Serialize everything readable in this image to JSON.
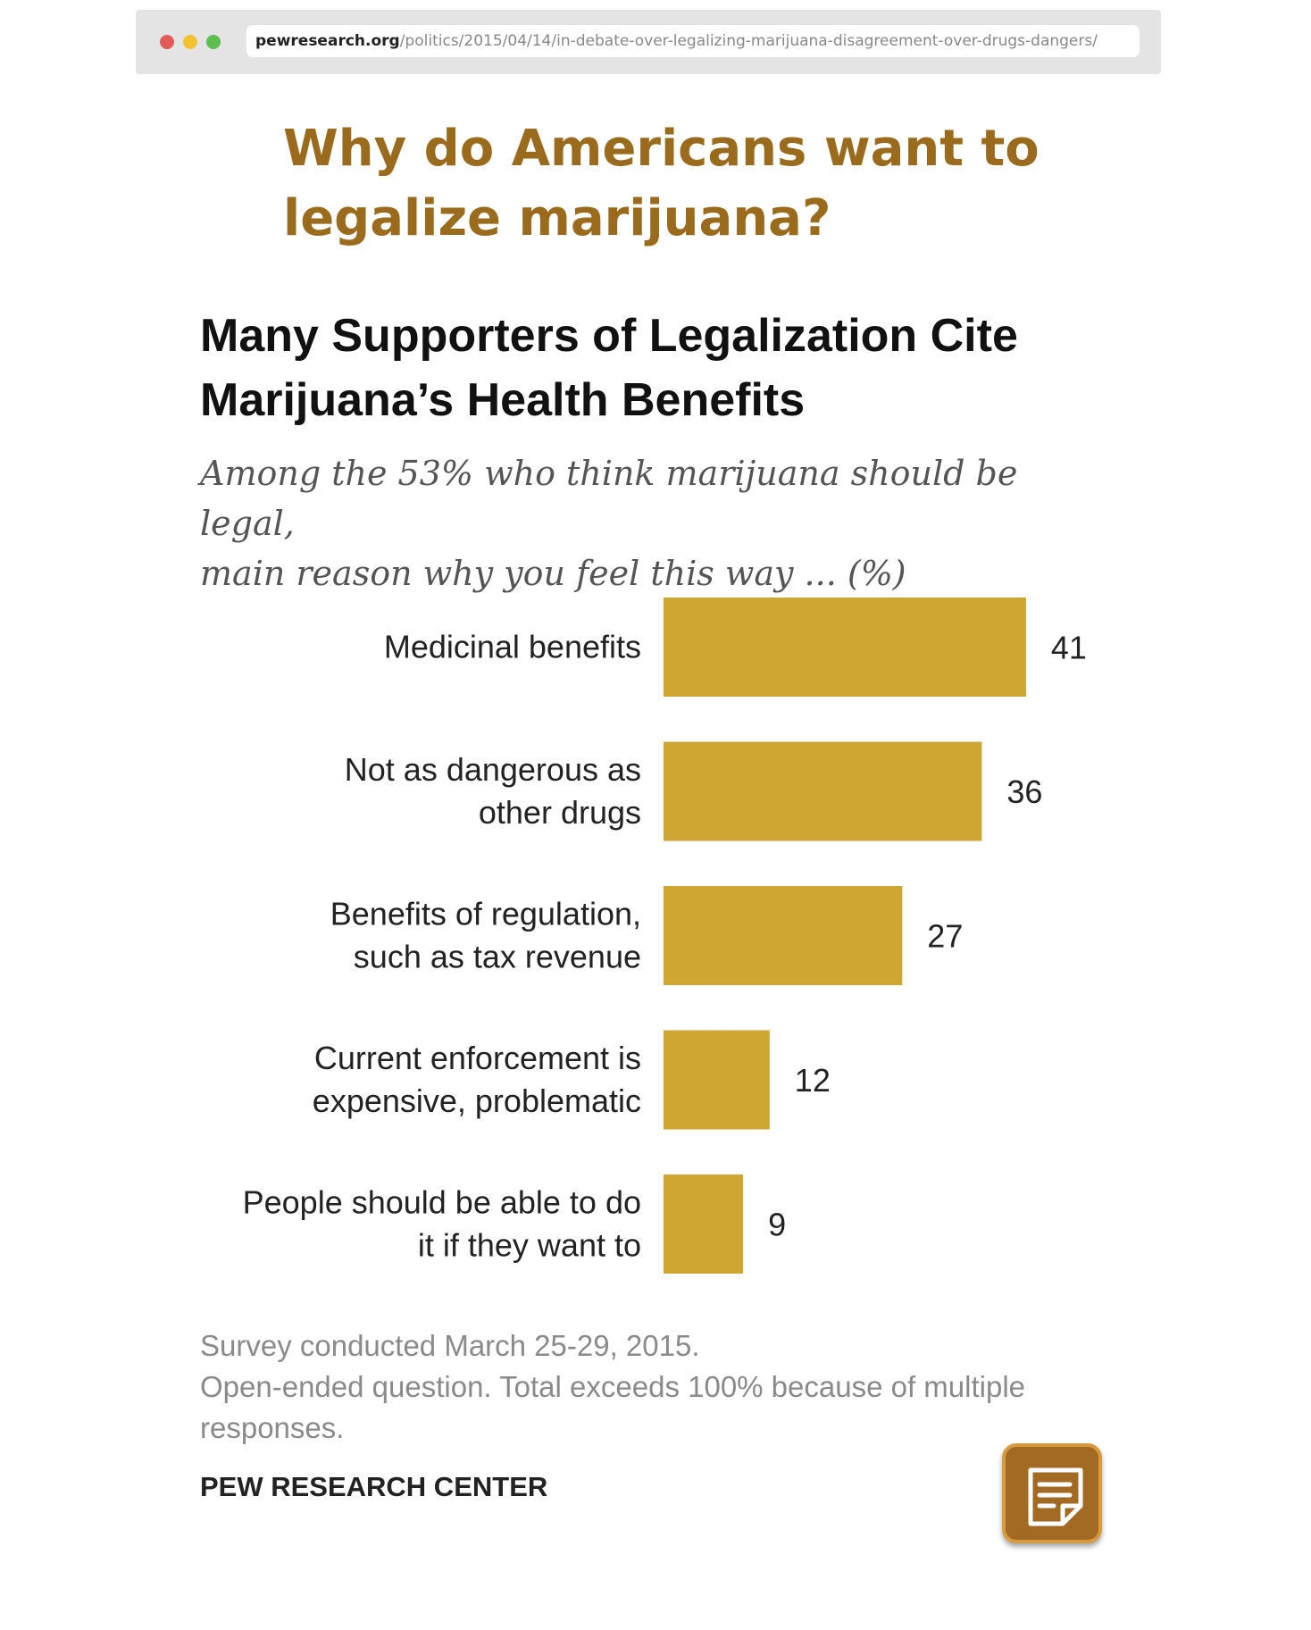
{
  "browser": {
    "url_host": "pewresearch.org",
    "url_path": "/politics/2015/04/14/in-debate-over-legalizing-marijuana-disagreement-over-drugs-dangers/"
  },
  "headline": {
    "line1": "Why do Americans want to",
    "line2": "legalize marijuana?"
  },
  "chart_data": {
    "type": "bar",
    "orientation": "horizontal",
    "title_lines": [
      "Many Supporters of Legalization Cite",
      "Marijuana’s Health Benefits"
    ],
    "subtitle_lines": [
      "Among the 53% who think marijuana should be legal,",
      "main reason why you feel this way ... (%)"
    ],
    "categories": [
      [
        "Medicinal benefits"
      ],
      [
        "Not as dangerous as",
        "other drugs"
      ],
      [
        "Benefits of regulation,",
        "such as tax revenue"
      ],
      [
        "Current enforcement is",
        "expensive, problematic"
      ],
      [
        "People should be able to do",
        "it if they want to"
      ]
    ],
    "values": [
      41,
      36,
      27,
      12,
      9
    ],
    "value_labels": [
      "41",
      "36",
      "27",
      "12",
      "9"
    ],
    "bar_color": "#cfa631",
    "grid": false,
    "legend": "none"
  },
  "notes": {
    "line1": "Survey conducted March 25-29, 2015.",
    "line2": "Open-ended question. Total exceeds 100% because of multiple",
    "line3": "responses."
  },
  "source": "PEW RESEARCH CENTER",
  "note_button": {
    "icon": "note-icon",
    "color": "#a36a24"
  }
}
